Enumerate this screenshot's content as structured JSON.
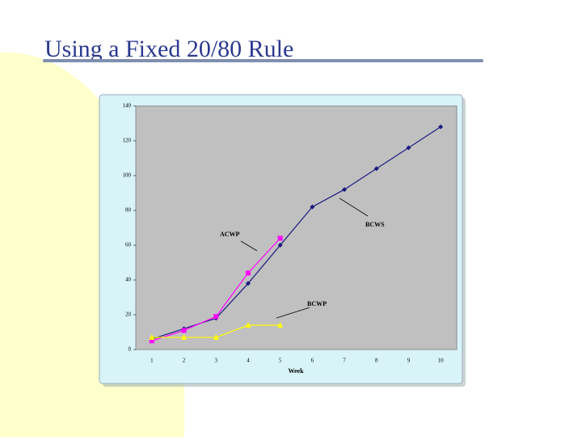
{
  "slide_title": "Using a Fixed 20/80 Rule",
  "chart_data": {
    "type": "line",
    "x_label": "Week",
    "categories": [
      "1",
      "2",
      "3",
      "4",
      "5",
      "6",
      "7",
      "8",
      "9",
      "10"
    ],
    "series": [
      {
        "name": "BCWS",
        "color": "#1a1a80",
        "marker": "diamond",
        "values": [
          6,
          12,
          18,
          38,
          60,
          82,
          92,
          104,
          116,
          128
        ]
      },
      {
        "name": "ACWP",
        "color": "#ff00ff",
        "marker": "square",
        "values": [
          5,
          11,
          19,
          44,
          64,
          null,
          null,
          null,
          null,
          null
        ]
      },
      {
        "name": "BCWP",
        "color": "#ffff00",
        "marker": "triangle",
        "values": [
          7,
          7,
          7,
          14,
          14,
          null,
          null,
          null,
          null,
          null
        ]
      }
    ],
    "ylim": [
      0,
      140
    ],
    "yticks": [
      0,
      20,
      40,
      60,
      80,
      100,
      120,
      140
    ],
    "grid": false
  }
}
